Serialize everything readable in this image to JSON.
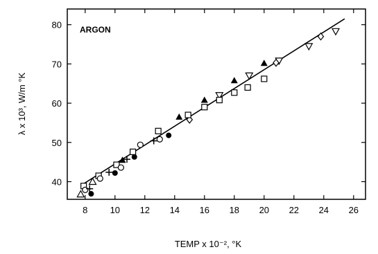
{
  "chart_data": {
    "type": "scatter",
    "title": "",
    "annotation": "ARGON",
    "xlabel": "TEMP x 10⁻², °K",
    "ylabel": "λ x 10³,  W/m °K",
    "xlim": [
      6.8,
      26.8
    ],
    "ylim": [
      35.5,
      84
    ],
    "x_ticks": [
      8,
      10,
      12,
      14,
      16,
      18,
      20,
      22,
      24,
      26
    ],
    "y_ticks": [
      40,
      50,
      60,
      70,
      80
    ],
    "grid": false,
    "legend": "none",
    "fit_line": {
      "x": [
        7.7,
        25.4
      ],
      "y": [
        39.0,
        81.5
      ]
    },
    "series": [
      {
        "marker": "filled-triangle",
        "points": [
          [
            10.5,
            45.5
          ],
          [
            14.3,
            56.5
          ],
          [
            16.0,
            60.8
          ],
          [
            18.0,
            65.8
          ],
          [
            20.0,
            70.2
          ]
        ]
      },
      {
        "marker": "open-triangle",
        "points": [
          [
            7.7,
            36.8
          ],
          [
            8.5,
            40.0
          ]
        ]
      },
      {
        "marker": "open-triangle-down",
        "points": [
          [
            17.0,
            62.0
          ],
          [
            19.0,
            67.0
          ],
          [
            21.0,
            70.8
          ],
          [
            23.0,
            74.5
          ],
          [
            24.8,
            78.3
          ]
        ]
      },
      {
        "marker": "open-diamond",
        "points": [
          [
            15.0,
            55.8
          ],
          [
            20.8,
            70.3
          ],
          [
            23.8,
            77.0
          ]
        ]
      },
      {
        "marker": "open-square",
        "points": [
          [
            7.9,
            38.9
          ],
          [
            8.9,
            41.5
          ],
          [
            10.1,
            44.3
          ],
          [
            11.2,
            47.6
          ],
          [
            12.9,
            52.9
          ],
          [
            14.9,
            57.0
          ],
          [
            16.0,
            59.0
          ],
          [
            17.0,
            60.8
          ],
          [
            18.0,
            62.7
          ],
          [
            18.9,
            64.0
          ],
          [
            20.0,
            66.2
          ]
        ]
      },
      {
        "marker": "open-circle",
        "points": [
          [
            8.0,
            37.9
          ],
          [
            9.0,
            40.8
          ],
          [
            10.4,
            43.6
          ],
          [
            11.7,
            49.4
          ],
          [
            13.0,
            50.8
          ]
        ]
      },
      {
        "marker": "filled-circle",
        "points": [
          [
            8.4,
            36.9
          ],
          [
            10.0,
            42.2
          ],
          [
            11.3,
            46.3
          ],
          [
            13.6,
            51.8
          ]
        ]
      },
      {
        "marker": "plus",
        "points": [
          [
            8.3,
            38.2
          ],
          [
            9.6,
            42.4
          ],
          [
            10.8,
            45.7
          ],
          [
            12.6,
            50.4
          ]
        ]
      }
    ]
  }
}
